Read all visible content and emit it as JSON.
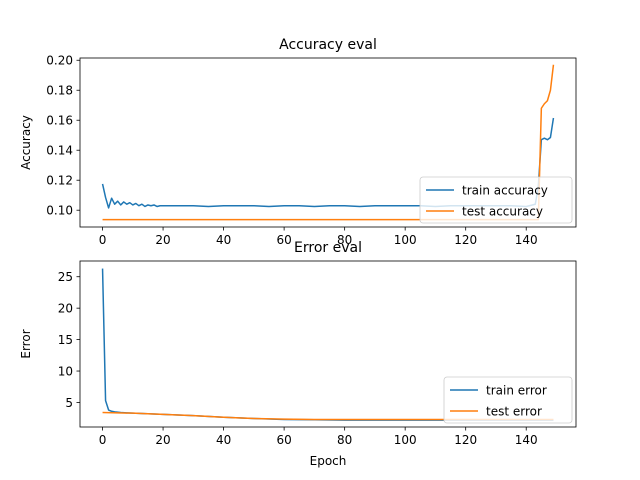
{
  "figure": {
    "background": "#ffffff"
  },
  "colors": {
    "train": "#1f77b4",
    "test": "#ff7f0e"
  },
  "chart_data": [
    {
      "type": "line",
      "title": "Accuracy eval",
      "xlabel": "",
      "ylabel": "Accuracy",
      "xlim": [
        -7.45,
        156.45
      ],
      "ylim": [
        0.0888,
        0.2015
      ],
      "xticks": [
        0,
        20,
        40,
        60,
        80,
        100,
        120,
        140
      ],
      "yticks": [
        0.1,
        0.12,
        0.14,
        0.16,
        0.18,
        0.2
      ],
      "ytick_labels": [
        "0.10",
        "0.12",
        "0.14",
        "0.16",
        "0.18",
        "0.20"
      ],
      "grid": false,
      "legend_loc": "lower right",
      "series": [
        {
          "name": "train accuracy",
          "color": "#1f77b4",
          "x": [
            0,
            1,
            2,
            3,
            4,
            5,
            6,
            7,
            8,
            9,
            10,
            11,
            12,
            13,
            14,
            15,
            16,
            17,
            18,
            19,
            20,
            25,
            30,
            35,
            40,
            45,
            50,
            55,
            60,
            65,
            70,
            75,
            80,
            85,
            90,
            95,
            100,
            105,
            110,
            115,
            120,
            125,
            130,
            135,
            140,
            143,
            144,
            145,
            146,
            147,
            148,
            149
          ],
          "y": [
            0.1175,
            0.1085,
            0.1015,
            0.108,
            0.104,
            0.106,
            0.1035,
            0.1055,
            0.104,
            0.105,
            0.1035,
            0.1045,
            0.103,
            0.104,
            0.1025,
            0.1035,
            0.103,
            0.1035,
            0.1025,
            0.103,
            0.103,
            0.103,
            0.103,
            0.1025,
            0.103,
            0.103,
            0.103,
            0.1025,
            0.103,
            0.103,
            0.1025,
            0.103,
            0.103,
            0.1025,
            0.103,
            0.103,
            0.103,
            0.103,
            0.1025,
            0.103,
            0.103,
            0.103,
            0.103,
            0.103,
            0.1025,
            0.104,
            0.116,
            0.147,
            0.148,
            0.147,
            0.1485,
            0.1615
          ]
        },
        {
          "name": "test accuracy",
          "color": "#ff7f0e",
          "x": [
            0,
            143,
            144,
            145,
            146,
            147,
            148,
            149
          ],
          "y": [
            0.0937,
            0.0937,
            0.0937,
            0.168,
            0.171,
            0.173,
            0.18,
            0.197
          ]
        }
      ]
    },
    {
      "type": "line",
      "title": "Error eval",
      "xlabel": "Epoch",
      "ylabel": "Error",
      "xlim": [
        -7.45,
        156.45
      ],
      "ylim": [
        1.1,
        27.5
      ],
      "xticks": [
        0,
        20,
        40,
        60,
        80,
        100,
        120,
        140
      ],
      "yticks": [
        5,
        10,
        15,
        20,
        25
      ],
      "ytick_labels": [
        "5",
        "10",
        "15",
        "20",
        "25"
      ],
      "grid": false,
      "legend_loc": "lower right",
      "series": [
        {
          "name": "train error",
          "color": "#1f77b4",
          "x": [
            0,
            1,
            2,
            3,
            4,
            6,
            8,
            10,
            15,
            20,
            30,
            40,
            50,
            60,
            70,
            80,
            90,
            100,
            110,
            120,
            130,
            140,
            149
          ],
          "y": [
            26.3,
            5.3,
            3.8,
            3.6,
            3.5,
            3.4,
            3.35,
            3.3,
            3.2,
            3.1,
            2.9,
            2.65,
            2.45,
            2.3,
            2.25,
            2.2,
            2.2,
            2.2,
            2.2,
            2.2,
            2.2,
            2.2,
            2.2
          ]
        },
        {
          "name": "test error",
          "color": "#ff7f0e",
          "x": [
            0,
            5,
            10,
            15,
            20,
            30,
            40,
            50,
            60,
            70,
            80,
            90,
            100,
            110,
            120,
            130,
            140,
            149
          ],
          "y": [
            3.4,
            3.35,
            3.3,
            3.2,
            3.1,
            2.9,
            2.65,
            2.45,
            2.35,
            2.3,
            2.3,
            2.3,
            2.3,
            2.3,
            2.3,
            2.3,
            2.3,
            2.3
          ]
        }
      ]
    }
  ]
}
